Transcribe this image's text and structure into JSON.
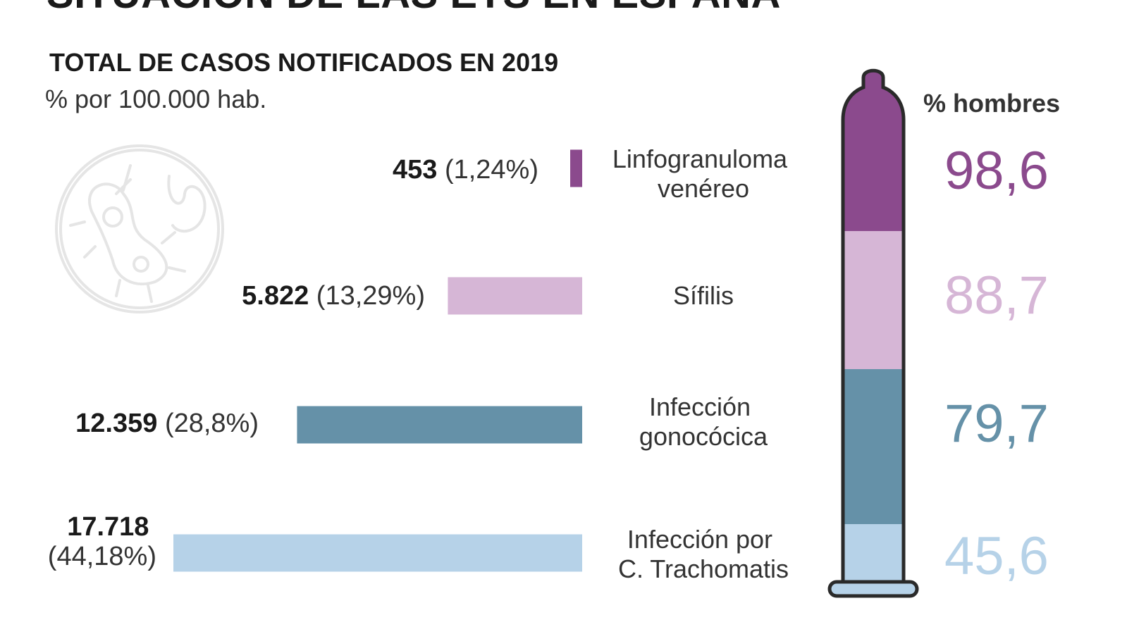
{
  "header": {
    "title": "SITUACIÓN DE LAS ETS EN ESPAÑA",
    "subtitle": "TOTAL DE CASOS NOTIFICADOS EN 2019",
    "unit": "% por 100.000 hab.",
    "men_header": "% hombres"
  },
  "colors": {
    "linfogranuloma": "#8b4a8d",
    "sifilis": "#d6b6d6",
    "gonococica": "#6591a8",
    "trachomatis": "#b6d2e8",
    "outline": "#2a2a2a",
    "decoration": "#e5e5e5"
  },
  "decoration": {
    "icon": "bacteria-icon"
  },
  "chart_data": {
    "type": "bar",
    "orientation": "horizontal",
    "title": "TOTAL DE CASOS NOTIFICADOS EN 2019",
    "xlabel": "",
    "ylabel": "",
    "categories": [
      [
        "Linfogranuloma",
        "venéreo"
      ],
      [
        "Sífilis"
      ],
      [
        "Infección",
        "gonocócica"
      ],
      [
        "Infección por",
        "C. Trachomatis"
      ]
    ],
    "values": [
      453,
      5822,
      12359,
      17718
    ],
    "value_labels": [
      "453",
      "5.822",
      "12.359",
      "17.718"
    ],
    "percent_labels": [
      "(1,24%)",
      "(13,29%)",
      "(28,8%)",
      "(44,18%)"
    ],
    "series_colors": [
      "#8b4a8d",
      "#d6b6d6",
      "#6591a8",
      "#b6d2e8"
    ],
    "secondary": {
      "type": "stacked",
      "name": "% hombres",
      "values": [
        98.6,
        88.7,
        79.7,
        45.6
      ],
      "labels": [
        "98,6",
        "88,7",
        "79,7",
        "45,6"
      ]
    }
  }
}
